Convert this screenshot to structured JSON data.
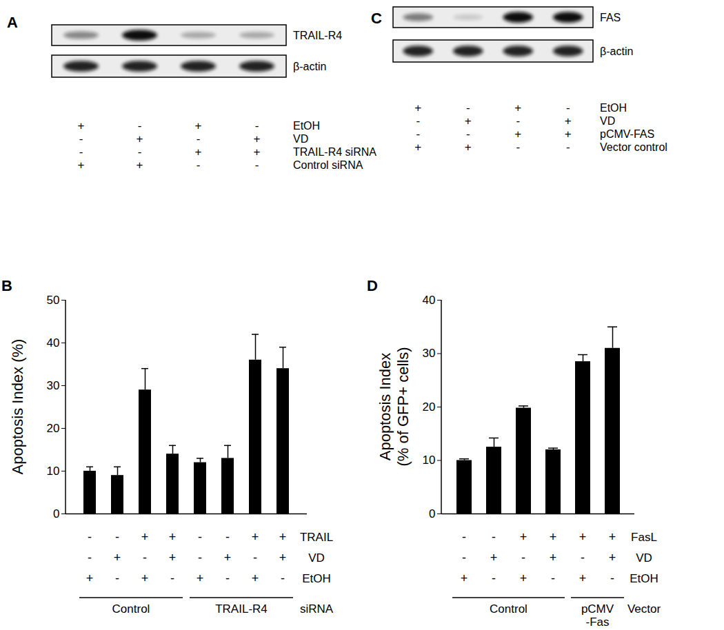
{
  "blots": [
    {
      "title": "A",
      "rows": [
        {
          "label": "TRAIL-R4",
          "bands": [
            0.45,
            1,
            0.3,
            0.3
          ]
        },
        {
          "label": "β-actin",
          "bands": [
            0.9,
            0.9,
            0.9,
            0.9
          ]
        }
      ],
      "conditions": [
        {
          "label": "EtOH",
          "marks": [
            "+",
            "-",
            "+",
            "-"
          ]
        },
        {
          "label": "VD",
          "marks": [
            "-",
            "+",
            "-",
            "+"
          ]
        },
        {
          "label": "TRAIL-R4 siRNA",
          "marks": [
            "-",
            "-",
            "+",
            "+"
          ]
        },
        {
          "label": "Control siRNA",
          "marks": [
            "+",
            "+",
            "-",
            "-"
          ]
        }
      ]
    },
    {
      "title": "C",
      "rows": [
        {
          "label": "FAS",
          "bands": [
            0.5,
            0.15,
            1,
            1
          ]
        },
        {
          "label": "β-actin",
          "bands": [
            0.9,
            0.9,
            0.9,
            0.9
          ]
        }
      ],
      "conditions": [
        {
          "label": "EtOH",
          "marks": [
            "+",
            "-",
            "+",
            "-"
          ]
        },
        {
          "label": "VD",
          "marks": [
            "-",
            "+",
            "-",
            "+"
          ]
        },
        {
          "label": "pCMV-FAS",
          "marks": [
            "-",
            "-",
            "+",
            "+"
          ]
        },
        {
          "label": "Vector control",
          "marks": [
            "+",
            "+",
            "-",
            "-"
          ]
        }
      ]
    }
  ],
  "chart_data": [
    {
      "type": "bar",
      "title": "B",
      "categories": [
        null,
        null,
        null,
        null,
        null,
        null,
        null,
        null
      ],
      "values": [
        10,
        9,
        29,
        14,
        12,
        13,
        36,
        34
      ],
      "errors": [
        1,
        2,
        5,
        2,
        1,
        3,
        6,
        5
      ],
      "color": "#000000",
      "ylabel": "Apoptosis Index (%)",
      "ylim": [
        0,
        50
      ],
      "yticks": [
        0,
        10,
        20,
        30,
        40,
        50
      ],
      "conditions": [
        {
          "label": "TRAIL",
          "marks": [
            "-",
            "-",
            "+",
            "+",
            "-",
            "-",
            "+",
            "+"
          ]
        },
        {
          "label": "VD",
          "marks": [
            "-",
            "+",
            "-",
            "+",
            "-",
            "+",
            "-",
            "+"
          ]
        },
        {
          "label": "EtOH",
          "marks": [
            "+",
            "-",
            "+",
            "-",
            "+",
            "-",
            "+",
            "-"
          ]
        }
      ],
      "groups": [
        {
          "label": "Control",
          "count": 4
        },
        {
          "label": "TRAIL-R4",
          "count": 4
        }
      ],
      "group_label": "siRNA"
    },
    {
      "type": "bar",
      "title": "D",
      "categories": [
        null,
        null,
        null,
        null,
        null,
        null
      ],
      "values": [
        10,
        12.5,
        19.8,
        12,
        28.5,
        31
      ],
      "errors": [
        0.3,
        1.7,
        0.4,
        0.3,
        1.3,
        4
      ],
      "color": "#000000",
      "ylabel": [
        "Apoptosis Index",
        "(% of GFP+ cells)"
      ],
      "ylim": [
        0,
        40
      ],
      "yticks": [
        0,
        10,
        20,
        30,
        40
      ],
      "conditions": [
        {
          "label": "FasL",
          "marks": [
            "-",
            "-",
            "+",
            "+",
            "+",
            "+"
          ]
        },
        {
          "label": "VD",
          "marks": [
            "-",
            "+",
            "-",
            "+",
            "-",
            "+"
          ]
        },
        {
          "label": "EtOH",
          "marks": [
            "+",
            "-",
            "+",
            "-",
            "+",
            "-"
          ]
        }
      ],
      "groups": [
        {
          "label": "Control",
          "count": 4
        },
        {
          "label": [
            "pCMV",
            "-Fas"
          ],
          "count": 2
        }
      ],
      "group_label": "Vector"
    }
  ]
}
